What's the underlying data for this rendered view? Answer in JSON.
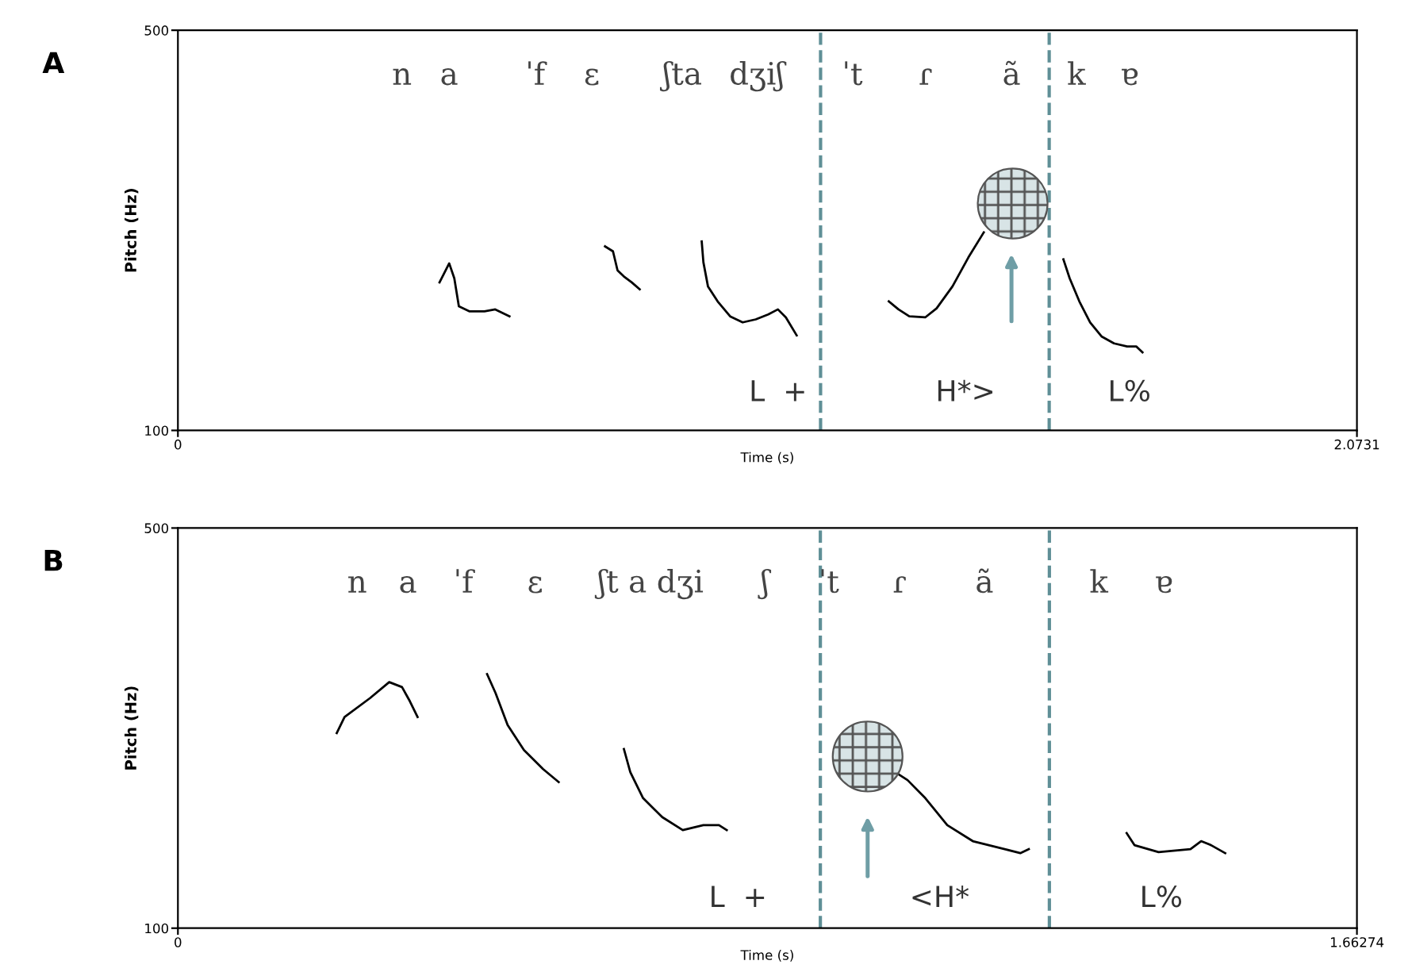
{
  "chart_data": [
    {
      "type": "line",
      "title": "A",
      "xlabel": "Time (s)",
      "ylabel": "Pitch (Hz)",
      "xlim": [
        0,
        2.0731
      ],
      "ylim": [
        100,
        500
      ],
      "xticks": [
        0,
        2.0731
      ],
      "yticks": [
        100,
        500
      ],
      "grid": false,
      "legend": false,
      "marker": "none",
      "line_style": "solid",
      "series": [
        {
          "color": "#000000",
          "x": [
            0.46,
            0.477,
            0.486,
            0.494,
            0.513,
            0.539,
            0.558,
            0.583
          ],
          "values": [
            248,
            267,
            252,
            224,
            219,
            219,
            221,
            214
          ]
        },
        {
          "color": "#000000",
          "x": [
            0.751,
            0.765,
            0.773,
            0.784,
            0.798,
            0.812
          ],
          "values": [
            284,
            279,
            260,
            254,
            248,
            241
          ]
        },
        {
          "color": "#000000",
          "x": [
            0.921,
            0.924,
            0.932,
            0.949,
            0.971,
            0.993,
            1.016,
            1.038,
            1.055,
            1.069,
            1.088
          ],
          "values": [
            289,
            268,
            244,
            229,
            214,
            208,
            211,
            216,
            221,
            213,
            195
          ]
        },
        {
          "color": "#000000",
          "x": [
            1.25,
            1.267,
            1.286,
            1.314,
            1.334,
            1.362,
            1.39,
            1.417
          ],
          "values": [
            229,
            221,
            214,
            213,
            222,
            244,
            273,
            298
          ]
        },
        {
          "color": "#000000",
          "x": [
            1.557,
            1.568,
            1.585,
            1.604,
            1.624,
            1.646,
            1.669,
            1.685,
            1.696
          ],
          "values": [
            271,
            252,
            229,
            208,
            194,
            187,
            184,
            184,
            178
          ]
        }
      ],
      "ref_lines": [
        {
          "axis": "x",
          "value": 1.13,
          "color": "#5f8f96",
          "line_style": "dashed"
        },
        {
          "axis": "x",
          "value": 1.532,
          "color": "#5f8f96",
          "line_style": "dashed"
        }
      ],
      "annotations": [
        "n",
        "a",
        "ˈf",
        "ɛ",
        "ʃta",
        "dʒiʃ",
        "ˈt",
        "ɾ",
        "ã",
        "k",
        "ɐ",
        "L  +",
        "H*>",
        "L%"
      ]
    },
    {
      "type": "line",
      "title": "B",
      "xlabel": "Time (s)",
      "ylabel": "Pitch (Hz)",
      "xlim": [
        0,
        1.66274
      ],
      "ylim": [
        100,
        500
      ],
      "xticks": [
        0,
        1.66274
      ],
      "yticks": [
        100,
        500
      ],
      "grid": false,
      "legend": false,
      "marker": "none",
      "line_style": "solid",
      "series": [
        {
          "color": "#000000",
          "x": [
            0.224,
            0.235,
            0.271,
            0.298,
            0.316,
            0.327,
            0.338
          ],
          "values": [
            295,
            311,
            330,
            346,
            341,
            327,
            311
          ]
        },
        {
          "color": "#000000",
          "x": [
            0.436,
            0.448,
            0.465,
            0.488,
            0.515,
            0.537
          ],
          "values": [
            354,
            335,
            303,
            278,
            259,
            246
          ]
        },
        {
          "color": "#000000",
          "x": [
            0.629,
            0.638,
            0.656,
            0.683,
            0.712,
            0.741,
            0.763,
            0.774
          ],
          "values": [
            279,
            256,
            230,
            211,
            198,
            203,
            203,
            198
          ]
        },
        {
          "color": "#000000",
          "x": [
            1.016,
            1.029,
            1.054,
            1.085,
            1.121,
            1.166,
            1.188,
            1.2
          ],
          "values": [
            254,
            248,
            230,
            203,
            187,
            179,
            175,
            179
          ]
        },
        {
          "color": "#000000",
          "x": [
            1.338,
            1.349,
            1.383,
            1.428,
            1.443,
            1.457,
            1.477
          ],
          "values": [
            195,
            183,
            176,
            179,
            187,
            183,
            175
          ]
        }
      ],
      "ref_lines": [
        {
          "axis": "x",
          "value": 0.906,
          "color": "#5f8f96",
          "line_style": "dashed"
        },
        {
          "axis": "x",
          "value": 1.229,
          "color": "#5f8f96",
          "line_style": "dashed"
        }
      ],
      "annotations": [
        "n",
        "a",
        "ˈf",
        "ɛ",
        "ʃt a dʒi",
        "ʃ",
        "ˈt",
        "ɾ",
        "ã",
        "k",
        "ɐ",
        "L  +",
        "<H*",
        "L%"
      ]
    }
  ]
}
